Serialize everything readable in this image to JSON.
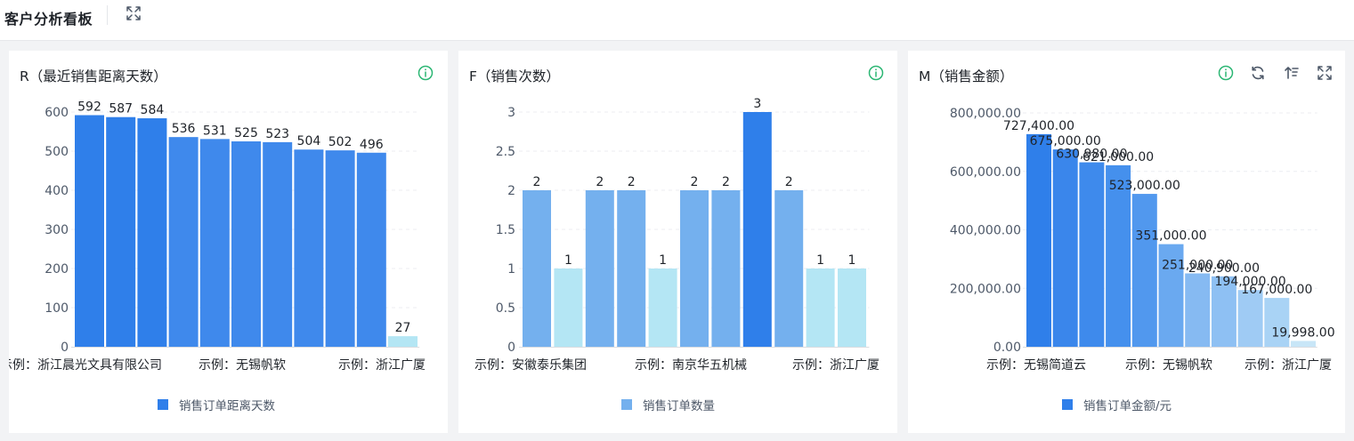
{
  "header": {
    "title": "客户分析看板"
  },
  "colors": {
    "card_bg": "#ffffff",
    "page_bg": "#f2f3f5",
    "info_green": "#2bb673",
    "primary_blue": "#2f7fea",
    "light_blue": "#b4e6f4"
  },
  "icons": [
    "expand-icon",
    "info-icon",
    "refresh-icon",
    "sort-icon"
  ],
  "charts": {
    "recency": {
      "title": "R（最近销售距离天数）",
      "legend": "销售订单距离天数",
      "legend_color": "#2f7fea"
    },
    "frequency": {
      "title": "F（销售次数）",
      "legend": "销售订单数量",
      "legend_color": "#74b0ee"
    },
    "monetary": {
      "title": "M（销售金额）",
      "legend": "销售订单金额/元",
      "legend_color": "#2f7fea"
    }
  },
  "chart_data": [
    {
      "type": "bar",
      "title": "R（最近销售距离天数）",
      "ylim": [
        0,
        600
      ],
      "yticks": [
        "0",
        "100",
        "200",
        "300",
        "400",
        "500",
        "600"
      ],
      "values": [
        592,
        587,
        584,
        536,
        531,
        525,
        523,
        504,
        502,
        496,
        27
      ],
      "labels": [
        "592",
        "587",
        "584",
        "536",
        "531",
        "525",
        "523",
        "504",
        "502",
        "496",
        "27"
      ],
      "colors": [
        "#2f7fea",
        "#2f7fea",
        "#2f7fea",
        "#3f89ec",
        "#3f89ec",
        "#3f89ec",
        "#3f89ec",
        "#3f89ec",
        "#3f89ec",
        "#3f89ec",
        "#b4e6f4"
      ],
      "x_tick_labels": [
        "示例：浙江晨光文具有限公司",
        "示例：无锡帆软",
        "示例：浙江广厦"
      ],
      "series_name": "销售订单距离天数",
      "grid": true
    },
    {
      "type": "bar",
      "title": "F（销售次数）",
      "ylim": [
        0,
        3
      ],
      "yticks": [
        "0",
        "0.5",
        "1",
        "1.5",
        "2",
        "2.5",
        "3"
      ],
      "values": [
        2,
        1,
        2,
        2,
        1,
        2,
        2,
        3,
        2,
        1,
        1
      ],
      "labels": [
        "2",
        "1",
        "2",
        "2",
        "1",
        "2",
        "2",
        "3",
        "2",
        "1",
        "1"
      ],
      "colors": [
        "#74b0ee",
        "#b4e6f4",
        "#74b0ee",
        "#74b0ee",
        "#b4e6f4",
        "#74b0ee",
        "#74b0ee",
        "#2f7fea",
        "#74b0ee",
        "#b4e6f4",
        "#b4e6f4"
      ],
      "x_tick_labels": [
        "示例：安徽泰乐集团",
        "示例：南京华五机械",
        "示例：浙江广厦"
      ],
      "series_name": "销售订单数量",
      "grid": true
    },
    {
      "type": "bar",
      "title": "M（销售金额）",
      "ylim": [
        0,
        800000
      ],
      "yticks": [
        "0.00",
        "200,000.00",
        "400,000.00",
        "600,000.00",
        "800,000.00"
      ],
      "values": [
        727400,
        675000,
        630980,
        621000,
        523000,
        351000,
        251000,
        240900,
        194000,
        167000,
        19998
      ],
      "labels": [
        "727,400.00",
        "675,000.00",
        "630,980.00",
        "621,000.00",
        "523,000.00",
        "351,000.00",
        "251,000.00",
        "240,900.00",
        "194,000.00",
        "167,000.00",
        "19,998.00"
      ],
      "colors": [
        "#2f7fea",
        "#3a86eb",
        "#3e8aec",
        "#4590ed",
        "#5198ee",
        "#6aa9f0",
        "#86baf2",
        "#8ec0f3",
        "#9fcbf4",
        "#a9d3f5",
        "#c8e6f7"
      ],
      "x_tick_labels": [
        "示例：无锡简道云",
        "示例：无锡帆软",
        "示例：浙江广厦"
      ],
      "series_name": "销售订单金额/元",
      "grid": true
    }
  ]
}
